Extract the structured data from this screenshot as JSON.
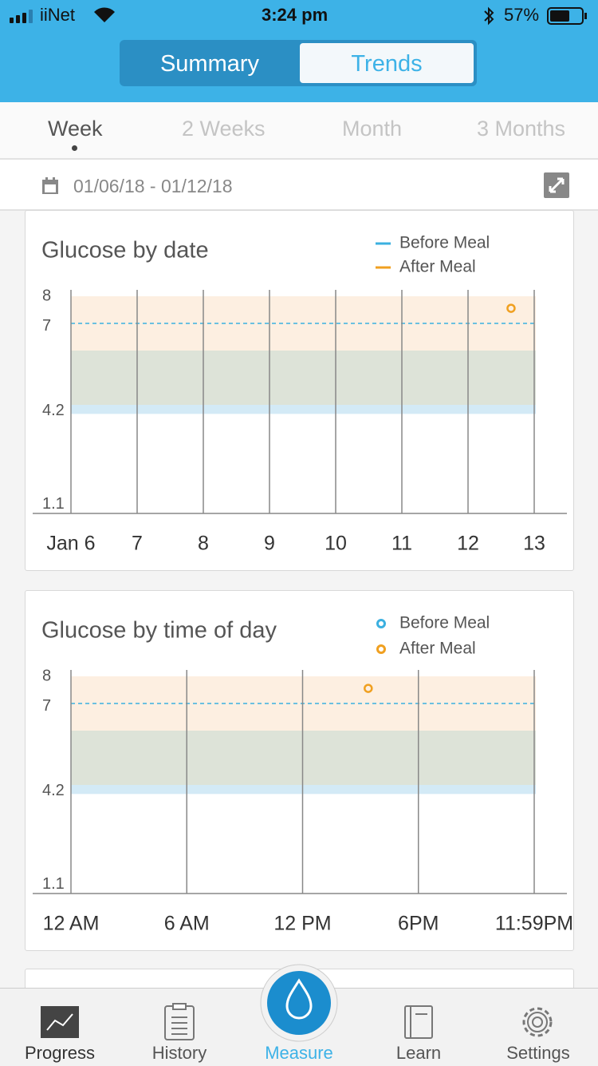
{
  "status_bar": {
    "carrier": "iiNet",
    "time": "3:24 pm",
    "battery": "57%"
  },
  "segmented_control": [
    "Summary",
    "Trends"
  ],
  "periods": [
    "Week",
    "2 Weeks",
    "Month",
    "3 Months"
  ],
  "date_range": "01/06/18 - 01/12/18",
  "chart_data": [
    {
      "type": "scatter",
      "title": "Glucose by date",
      "legend_marker": "dash",
      "xlim": [
        6,
        13
      ],
      "xticks": [
        {
          "value": 6,
          "label": "Jan 6"
        },
        7,
        8,
        9,
        10,
        11,
        12,
        13
      ],
      "ylim": [
        0.8,
        8.0
      ],
      "yticks": [
        1.1,
        4.2,
        7.0,
        8.0
      ],
      "bands": [
        {
          "from": 4.1,
          "to": 4.4,
          "color": "#d3eaf6"
        },
        {
          "from": 4.4,
          "to": 6.2,
          "color": "#dde3d8"
        },
        {
          "from": 6.2,
          "to": 8.0,
          "color": "#fdefe1"
        }
      ],
      "reference_line": 7.1,
      "series": [
        {
          "name": "Before Meal",
          "color": "#3bb0e0",
          "x": [],
          "values": []
        },
        {
          "name": "After Meal",
          "color": "#f0a020",
          "x": [
            12.65
          ],
          "values": [
            7.6
          ]
        }
      ]
    },
    {
      "type": "scatter",
      "title": "Glucose by time of day",
      "legend_marker": "circle",
      "xlim": [
        0,
        24
      ],
      "xticks": [
        {
          "value": 0,
          "label": "12 AM"
        },
        {
          "value": 6,
          "label": "6 AM"
        },
        {
          "value": 12,
          "label": "12 PM"
        },
        {
          "value": 18,
          "label": "6PM"
        },
        {
          "value": 24,
          "label": "11:59PM"
        }
      ],
      "ylim": [
        0.8,
        8.0
      ],
      "yticks": [
        1.1,
        4.2,
        7.0,
        8.0
      ],
      "bands": [
        {
          "from": 4.1,
          "to": 4.4,
          "color": "#d3eaf6"
        },
        {
          "from": 4.4,
          "to": 6.2,
          "color": "#dde3d8"
        },
        {
          "from": 6.2,
          "to": 8.0,
          "color": "#fdefe1"
        }
      ],
      "reference_line": 7.1,
      "series": [
        {
          "name": "Before Meal",
          "color": "#3bb0e0",
          "x": [],
          "values": []
        },
        {
          "name": "After Meal",
          "color": "#f0a020",
          "x": [
            15.4
          ],
          "values": [
            7.6
          ]
        }
      ]
    }
  ],
  "tabs": [
    "Progress",
    "History",
    "Measure",
    "Learn",
    "Settings"
  ]
}
